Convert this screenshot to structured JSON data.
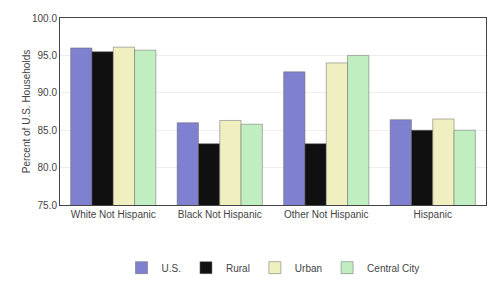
{
  "chart_data": {
    "type": "bar",
    "categories": [
      "White Not Hispanic",
      "Black Not Hispanic",
      "Other Not Hispanic",
      "Hispanic"
    ],
    "series": [
      {
        "name": "U.S.",
        "color": "#8080d0",
        "values": [
          96.0,
          86.0,
          92.8,
          86.4
        ]
      },
      {
        "name": "Rural",
        "color": "#101010",
        "values": [
          95.5,
          83.2,
          83.2,
          85.0
        ]
      },
      {
        "name": "Urban",
        "color": "#efefc0",
        "values": [
          96.1,
          86.3,
          94.0,
          86.5
        ]
      },
      {
        "name": "Central City",
        "color": "#c0eec0",
        "values": [
          95.7,
          85.8,
          95.0,
          85.0
        ]
      }
    ],
    "ylabel": "Percent of U.S. Households",
    "ylim": [
      75.0,
      100.0
    ],
    "yticks": [
      {
        "value": 75,
        "label": "75.0"
      },
      {
        "value": 80,
        "label": "80.0"
      },
      {
        "value": 85,
        "label": "85.0"
      },
      {
        "value": 90,
        "label": "90.0"
      },
      {
        "value": 95,
        "label": "95.0"
      },
      {
        "value": 100,
        "label": "100.0"
      }
    ],
    "grid": true,
    "legend": "bottom"
  }
}
